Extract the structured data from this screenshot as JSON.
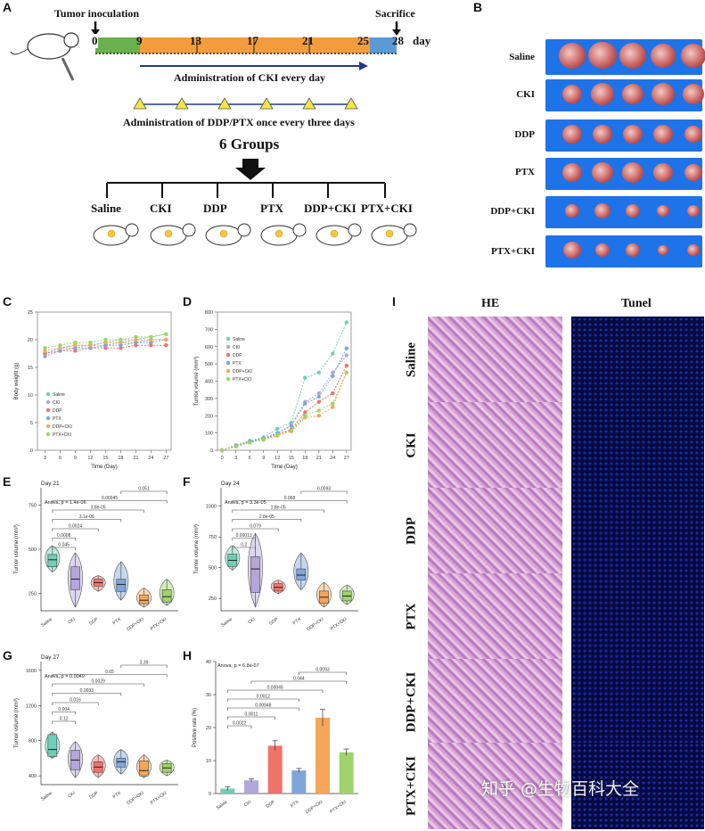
{
  "panels": {
    "A": "A",
    "B": "B",
    "C": "C",
    "D": "D",
    "E": "E",
    "F": "F",
    "G": "G",
    "H": "H",
    "I": "I"
  },
  "timeline": {
    "tumor_inoculation": "Tumor inoculation",
    "sacrifice": "Sacrifice",
    "ticks": [
      "0",
      "9",
      "13",
      "17",
      "21",
      "25",
      "28"
    ],
    "day": "day",
    "cki_admin": "Administration of CKI every day",
    "ddp_admin": "Administration of DDP/PTX once every three days",
    "groups_title": "6 Groups",
    "groups": [
      "Saline",
      "CKI",
      "DDP",
      "PTX",
      "DDP+CKI",
      "PTX+CKI"
    ],
    "colors": {
      "green": "#6ab04c",
      "orange": "#f39c3d",
      "blue": "#5b9bd5",
      "arrow": "#1f3a8a",
      "triangle": "#f5e642"
    }
  },
  "tumor_rows": {
    "labels": [
      "Saline",
      "CKI",
      "DDP",
      "PTX",
      "DDP+CKI",
      "PTX+CKI"
    ],
    "counts": [
      5,
      5,
      5,
      5,
      5,
      5
    ]
  },
  "histology": {
    "he": "HE",
    "tunel": "Tunel",
    "rows": [
      "Saline",
      "CKI",
      "DDP",
      "PTX",
      "DDP+CKI",
      "PTX+CKI"
    ]
  },
  "watermark": "知乎 @生物百科大全",
  "chart_data": [
    {
      "id": "C",
      "type": "line",
      "xlabel": "Time (Day)",
      "ylabel": "Body weight (g)",
      "x": [
        3,
        6,
        9,
        12,
        15,
        18,
        21,
        24,
        27
      ],
      "xticks": [
        "3",
        "6",
        "9",
        "12",
        "15",
        "18",
        "21",
        "24",
        "27"
      ],
      "ylim": [
        0,
        25
      ],
      "yticks": [
        "0",
        "5",
        "10",
        "15",
        "20",
        "25"
      ],
      "legend": [
        "Saline",
        "CKI",
        "DDP",
        "PTX",
        "DDP+CKI",
        "PTX+CKI"
      ],
      "series": [
        {
          "name": "Saline",
          "color": "#6fcfb6",
          "values": [
            17.5,
            18.5,
            19,
            19,
            19.5,
            20,
            20,
            20.5,
            21
          ]
        },
        {
          "name": "CKI",
          "color": "#b3a6d9",
          "values": [
            17.5,
            18.5,
            18.5,
            19,
            19,
            19.5,
            19.5,
            20,
            20
          ]
        },
        {
          "name": "DDP",
          "color": "#f0736a",
          "values": [
            17.5,
            18,
            18,
            18.5,
            18.5,
            18.5,
            19,
            19,
            19
          ]
        },
        {
          "name": "PTX",
          "color": "#7fa6d9",
          "values": [
            17,
            18,
            18.5,
            18.5,
            19,
            19,
            19.5,
            19.5,
            20
          ]
        },
        {
          "name": "DDP+CKI",
          "color": "#f5a65b",
          "values": [
            18,
            18.5,
            19,
            19,
            19.5,
            19.5,
            20,
            20,
            20
          ]
        },
        {
          "name": "PTX+CKI",
          "color": "#9ed46b",
          "values": [
            18.5,
            19,
            19.5,
            19.5,
            20,
            20,
            20.5,
            20.5,
            21
          ]
        }
      ]
    },
    {
      "id": "D",
      "type": "line",
      "xlabel": "Time (Day)",
      "ylabel": "Tumor volume (mm³)",
      "x": [
        0,
        3,
        6,
        9,
        12,
        15,
        18,
        21,
        24,
        27
      ],
      "xticks": [
        "0",
        "3",
        "6",
        "9",
        "12",
        "15",
        "18",
        "21",
        "24",
        "27"
      ],
      "ylim": [
        0,
        800
      ],
      "yticks": [
        "0",
        "100",
        "200",
        "300",
        "400",
        "500",
        "600",
        "700",
        "800"
      ],
      "legend": [
        "Saline",
        "CKI",
        "DDP",
        "PTX",
        "DDP+CKI",
        "PTX+CKI"
      ],
      "series": [
        {
          "name": "Saline",
          "color": "#6fcfb6",
          "values": [
            0,
            30,
            55,
            75,
            125,
            160,
            420,
            450,
            560,
            740
          ]
        },
        {
          "name": "CKI",
          "color": "#b3a6d9",
          "values": [
            0,
            28,
            50,
            70,
            100,
            145,
            280,
            330,
            450,
            550
          ]
        },
        {
          "name": "DDP",
          "color": "#f0736a",
          "values": [
            0,
            25,
            48,
            65,
            95,
            120,
            220,
            280,
            330,
            490
          ]
        },
        {
          "name": "PTX",
          "color": "#7fa6d9",
          "values": [
            0,
            25,
            50,
            68,
            100,
            140,
            270,
            310,
            430,
            590
          ]
        },
        {
          "name": "DDP+CKI",
          "color": "#f5a65b",
          "values": [
            0,
            22,
            45,
            60,
            85,
            110,
            190,
            200,
            250,
            450
          ]
        },
        {
          "name": "PTX+CKI",
          "color": "#9ed46b",
          "values": [
            0,
            22,
            45,
            62,
            90,
            115,
            200,
            230,
            270,
            450
          ]
        }
      ]
    },
    {
      "id": "E",
      "type": "violin",
      "title": "Day 21",
      "anova": "Anova, p = 1.4e-06",
      "ylabel": "Tumor volume (mm³)",
      "categories": [
        "Saline",
        "CKI",
        "DDP",
        "PTX",
        "DDP+CKI",
        "PTX+CKI"
      ],
      "ylim": [
        150,
        850
      ],
      "yticks": [
        "250",
        "500",
        "750"
      ],
      "ytick_vals": [
        250,
        500,
        750
      ],
      "medians": [
        440,
        330,
        310,
        300,
        210,
        230
      ],
      "q1": [
        400,
        270,
        290,
        260,
        190,
        200
      ],
      "q3": [
        470,
        400,
        330,
        330,
        240,
        270
      ],
      "min": [
        370,
        170,
        260,
        210,
        170,
        180
      ],
      "max": [
        520,
        480,
        350,
        430,
        280,
        330
      ],
      "pvalues": [
        "0.051",
        "0.00045",
        "3.8e-05",
        "3.1e-06",
        "0.0024",
        "0.0008",
        "0.045"
      ]
    },
    {
      "id": "F",
      "type": "violin",
      "title": "Day 24",
      "anova": "Anova, p = 3.3e-05",
      "ylabel": "Tumor volume (mm³)",
      "categories": [
        "Saline",
        "CKI",
        "DDP",
        "PTX",
        "DDP+CKI",
        "PTX+CKI"
      ],
      "ylim": [
        150,
        1150
      ],
      "yticks": [
        "250",
        "500",
        "750",
        "1000"
      ],
      "ytick_vals": [
        250,
        500,
        750,
        1000
      ],
      "medians": [
        560,
        490,
        340,
        440,
        260,
        270
      ],
      "q1": [
        510,
        300,
        310,
        400,
        210,
        230
      ],
      "q3": [
        610,
        590,
        370,
        490,
        310,
        310
      ],
      "min": [
        480,
        180,
        290,
        320,
        180,
        200
      ],
      "max": [
        680,
        780,
        400,
        620,
        380,
        360
      ],
      "pvalues": [
        "0.0093",
        "0.068",
        "1.8e-05",
        "2.8e-05",
        "0.079",
        "0.00013",
        "0.2"
      ]
    },
    {
      "id": "G",
      "type": "violin",
      "title": "Day 27",
      "anova": "Anova, p = 0.0049",
      "ylabel": "Tumor volume (mm³)",
      "categories": [
        "Saline",
        "CKI",
        "DDP",
        "PTX",
        "DDP+CKI",
        "PTX+CKI"
      ],
      "ylim": [
        300,
        1700
      ],
      "yticks": [
        "400",
        "800",
        "1200",
        "1600"
      ],
      "ytick_vals": [
        400,
        800,
        1200,
        1600
      ],
      "medians": [
        700,
        580,
        500,
        560,
        460,
        490
      ],
      "q1": [
        620,
        470,
        440,
        500,
        400,
        440
      ],
      "q3": [
        870,
        690,
        560,
        600,
        570,
        540
      ],
      "min": [
        600,
        380,
        380,
        420,
        380,
        400
      ],
      "max": [
        900,
        790,
        640,
        700,
        640,
        580
      ],
      "pvalues": [
        "3.39",
        "0.65",
        "0.0029",
        "0.0033",
        "0.016",
        "0.004",
        "0.12"
      ]
    },
    {
      "id": "H",
      "type": "bar",
      "anova": "Anova, p = 6.8e-07",
      "ylabel": "Positive rate (%)",
      "categories": [
        "Saline",
        "CKI",
        "DDP",
        "PTX",
        "DDP+CKI",
        "PTX+CKI"
      ],
      "ylim": [
        0,
        40
      ],
      "yticks": [
        "0",
        "10",
        "20",
        "30",
        "40"
      ],
      "ytick_vals": [
        0,
        10,
        20,
        30,
        40
      ],
      "values": [
        1.5,
        4,
        14.5,
        7,
        23,
        12.5
      ],
      "errors": [
        0.5,
        0.4,
        1.5,
        0.6,
        2.5,
        1.0
      ],
      "colors": [
        "#6fcfb6",
        "#b3a6d9",
        "#f0736a",
        "#7fa6d9",
        "#f5a65b",
        "#9ed46b"
      ],
      "pvalues": [
        "0.0093",
        "0.044",
        "0.00045",
        "0.0012",
        "0.00048",
        "0.0011",
        "0.0022"
      ]
    }
  ]
}
